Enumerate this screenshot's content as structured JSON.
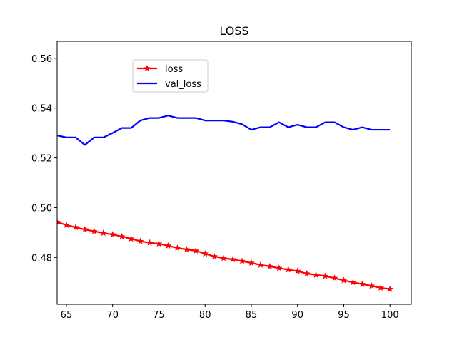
{
  "chart_data": {
    "type": "line",
    "title": "LOSS",
    "xlabel": "",
    "ylabel": "",
    "xlim": [
      64,
      102.3
    ],
    "ylim": [
      0.4612,
      0.5668
    ],
    "xticks": [
      65,
      70,
      75,
      80,
      85,
      90,
      95,
      100
    ],
    "yticks": [
      0.48,
      0.5,
      0.52,
      0.54,
      0.56
    ],
    "ytick_labels": [
      "0.48",
      "0.50",
      "0.52",
      "0.54",
      "0.56"
    ],
    "grid": false,
    "legend_position": "upper-left-center",
    "x": [
      64,
      65,
      66,
      67,
      68,
      69,
      70,
      71,
      72,
      73,
      74,
      75,
      76,
      77,
      78,
      79,
      80,
      81,
      82,
      83,
      84,
      85,
      86,
      87,
      88,
      89,
      90,
      91,
      92,
      93,
      94,
      95,
      96,
      97,
      98,
      99,
      100
    ],
    "series": [
      {
        "name": "loss",
        "color": "#ff0000",
        "marker": "star",
        "values": [
          0.4942,
          0.493,
          0.4921,
          0.4912,
          0.4905,
          0.4898,
          0.4892,
          0.4884,
          0.4875,
          0.4865,
          0.4859,
          0.4855,
          0.4847,
          0.4838,
          0.4832,
          0.4827,
          0.4815,
          0.4804,
          0.4797,
          0.4792,
          0.4785,
          0.4778,
          0.477,
          0.4764,
          0.4757,
          0.4751,
          0.4745,
          0.4735,
          0.473,
          0.4725,
          0.4717,
          0.4708,
          0.47,
          0.4693,
          0.4686,
          0.4678,
          0.4673
        ]
      },
      {
        "name": "val_loss",
        "color": "#0000ff",
        "marker": "none",
        "values": [
          0.529,
          0.5282,
          0.5282,
          0.5252,
          0.5282,
          0.5282,
          0.53,
          0.532,
          0.532,
          0.535,
          0.536,
          0.536,
          0.537,
          0.536,
          0.536,
          0.536,
          0.535,
          0.535,
          0.535,
          0.5345,
          0.5335,
          0.5313,
          0.5323,
          0.5323,
          0.5343,
          0.5323,
          0.5333,
          0.5323,
          0.5323,
          0.5343,
          0.5343,
          0.5323,
          0.5313,
          0.5323,
          0.5313,
          0.5313,
          0.5313
        ]
      }
    ]
  }
}
